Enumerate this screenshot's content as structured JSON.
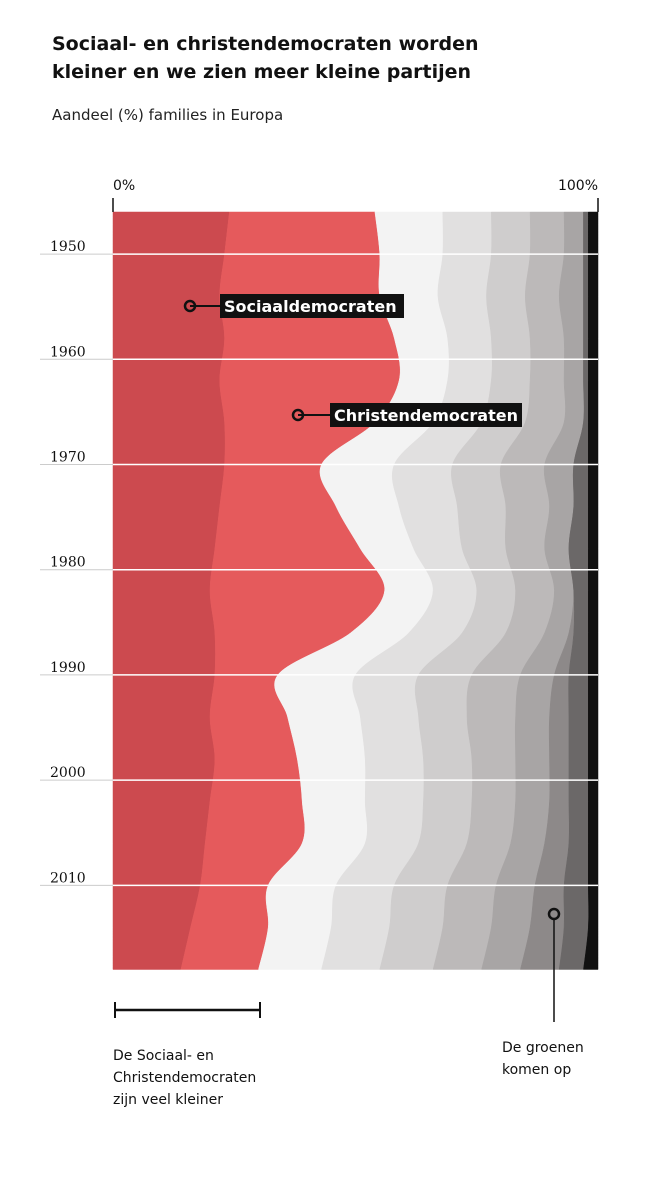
{
  "chart_data": {
    "type": "area",
    "title": [
      "Sociaal- en christendemocraten worden",
      "kleiner en we zien meer kleine partijen"
    ],
    "subtitle": "Aandeel (%) families in Europa",
    "x": [
      1946,
      1950,
      1954,
      1958,
      1962,
      1966,
      1970,
      1974,
      1978,
      1982,
      1986,
      1990,
      1994,
      1998,
      2002,
      2006,
      2010,
      2014,
      2018
    ],
    "series": [
      {
        "name": "Sociaaldemocraten",
        "color": "#cc4a4f",
        "values": [
          24,
          23,
          22,
          23,
          22,
          23,
          23,
          22,
          21,
          20,
          21,
          21,
          20,
          21,
          20,
          19,
          18,
          16,
          14
        ]
      },
      {
        "name": "Christendemocraten",
        "color": "#e55a5c",
        "values": [
          30,
          32,
          33,
          35,
          37,
          31,
          20,
          24,
          30,
          36,
          28,
          13,
          16,
          17,
          19,
          20,
          14,
          16,
          16
        ]
      },
      {
        "color": "#f3f3f3",
        "values": [
          14,
          13,
          12,
          11,
          10,
          12,
          15,
          13,
          11,
          10,
          12,
          16,
          15,
          14,
          13,
          13,
          14,
          13,
          13
        ]
      },
      {
        "color": "#e1e0e0",
        "values": [
          10,
          10,
          10,
          9,
          9,
          10,
          12,
          12,
          10,
          9,
          11,
          13,
          12,
          12,
          12,
          11,
          12,
          12,
          12
        ]
      },
      {
        "color": "#cfcdcd",
        "values": [
          8,
          8,
          8,
          8,
          8,
          9,
          10,
          10,
          9,
          8,
          9,
          11,
          10,
          10,
          10,
          10,
          11,
          11,
          11
        ]
      },
      {
        "color": "#bcb9b9",
        "values": [
          7,
          7,
          7,
          7,
          7,
          8,
          9,
          9,
          8,
          8,
          8,
          10,
          10,
          9,
          9,
          9,
          10,
          10,
          10
        ]
      },
      {
        "color": "#a8a5a5",
        "values": [
          4,
          4,
          5,
          4,
          4,
          4,
          6,
          5,
          5,
          4,
          5,
          7,
          7,
          7,
          7,
          7,
          8,
          8,
          8
        ]
      },
      {
        "color": "#8d8989",
        "values": [
          0,
          0,
          0,
          0,
          0,
          0,
          0,
          0,
          0,
          0,
          1,
          3,
          4,
          4,
          4,
          5,
          6,
          7,
          8
        ]
      },
      {
        "color": "#6b6868",
        "values": [
          1,
          1,
          1,
          1,
          1,
          1,
          3,
          3,
          4,
          3,
          3,
          4,
          4,
          4,
          4,
          4,
          5,
          5,
          5
        ]
      },
      {
        "color": "#111111",
        "values": [
          2,
          2,
          2,
          2,
          2,
          2,
          2,
          2,
          2,
          2,
          2,
          2,
          2,
          2,
          2,
          2,
          2,
          2,
          3
        ]
      }
    ],
    "xlim": [
      0,
      100
    ],
    "xticks": [
      {
        "value": 0,
        "label": "0%"
      },
      {
        "value": 100,
        "label": "100%"
      }
    ],
    "ylim": [
      1946,
      2019
    ],
    "yticks": [
      1950,
      1960,
      1970,
      1980,
      1990,
      2000,
      2010
    ],
    "grid": true,
    "annotations": {
      "socdem": "Sociaaldemocraten",
      "chrisdem": "Christendemocraten",
      "smaller": [
        "De Sociaal- en",
        "Christendemocraten",
        "zijn veel kleiner"
      ],
      "greens": [
        "De groenen",
        "komen op"
      ]
    }
  }
}
